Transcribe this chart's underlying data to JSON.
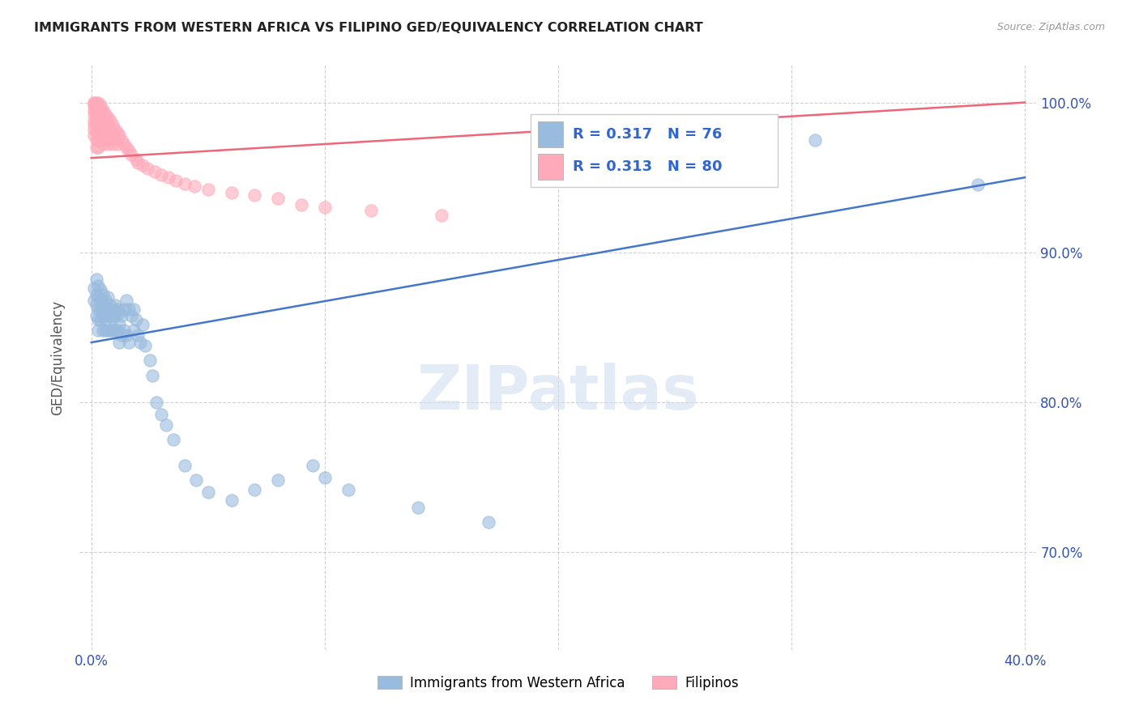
{
  "title": "IMMIGRANTS FROM WESTERN AFRICA VS FILIPINO GED/EQUIVALENCY CORRELATION CHART",
  "source": "Source: ZipAtlas.com",
  "ylabel": "GED/Equivalency",
  "legend_blue_R": "0.317",
  "legend_blue_N": "76",
  "legend_pink_R": "0.313",
  "legend_pink_N": "80",
  "blue_color": "#99BBDD",
  "pink_color": "#FFAABB",
  "blue_line_color": "#4477CC",
  "pink_line_color": "#EE6677",
  "watermark": "ZIPatlas",
  "legend_label_blue": "Immigrants from Western Africa",
  "legend_label_pink": "Filipinos",
  "blue_scatter_x": [
    0.001,
    0.001,
    0.002,
    0.002,
    0.002,
    0.002,
    0.003,
    0.003,
    0.003,
    0.003,
    0.003,
    0.004,
    0.004,
    0.004,
    0.004,
    0.005,
    0.005,
    0.005,
    0.005,
    0.006,
    0.006,
    0.006,
    0.006,
    0.007,
    0.007,
    0.007,
    0.007,
    0.008,
    0.008,
    0.008,
    0.009,
    0.009,
    0.009,
    0.01,
    0.01,
    0.01,
    0.011,
    0.011,
    0.012,
    0.012,
    0.012,
    0.013,
    0.013,
    0.014,
    0.014,
    0.015,
    0.015,
    0.016,
    0.016,
    0.017,
    0.018,
    0.018,
    0.019,
    0.02,
    0.021,
    0.022,
    0.023,
    0.025,
    0.026,
    0.028,
    0.03,
    0.032,
    0.035,
    0.04,
    0.045,
    0.05,
    0.06,
    0.07,
    0.08,
    0.095,
    0.1,
    0.11,
    0.14,
    0.17,
    0.31,
    0.38
  ],
  "blue_scatter_y": [
    0.876,
    0.868,
    0.882,
    0.872,
    0.865,
    0.858,
    0.878,
    0.87,
    0.862,
    0.855,
    0.848,
    0.875,
    0.868,
    0.862,
    0.855,
    0.872,
    0.865,
    0.858,
    0.848,
    0.868,
    0.862,
    0.855,
    0.848,
    0.87,
    0.862,
    0.858,
    0.848,
    0.865,
    0.858,
    0.848,
    0.862,
    0.856,
    0.848,
    0.865,
    0.858,
    0.848,
    0.862,
    0.848,
    0.86,
    0.852,
    0.84,
    0.858,
    0.845,
    0.862,
    0.848,
    0.868,
    0.845,
    0.862,
    0.84,
    0.858,
    0.862,
    0.848,
    0.855,
    0.845,
    0.84,
    0.852,
    0.838,
    0.828,
    0.818,
    0.8,
    0.792,
    0.785,
    0.775,
    0.758,
    0.748,
    0.74,
    0.735,
    0.742,
    0.748,
    0.758,
    0.75,
    0.742,
    0.73,
    0.72,
    0.975,
    0.945
  ],
  "pink_scatter_x": [
    0.001,
    0.001,
    0.001,
    0.001,
    0.001,
    0.001,
    0.001,
    0.001,
    0.001,
    0.002,
    0.002,
    0.002,
    0.002,
    0.002,
    0.002,
    0.002,
    0.002,
    0.002,
    0.003,
    0.003,
    0.003,
    0.003,
    0.003,
    0.003,
    0.003,
    0.003,
    0.003,
    0.004,
    0.004,
    0.004,
    0.004,
    0.004,
    0.004,
    0.005,
    0.005,
    0.005,
    0.005,
    0.005,
    0.006,
    0.006,
    0.006,
    0.006,
    0.007,
    0.007,
    0.007,
    0.007,
    0.008,
    0.008,
    0.008,
    0.009,
    0.009,
    0.009,
    0.01,
    0.01,
    0.011,
    0.011,
    0.012,
    0.013,
    0.014,
    0.015,
    0.016,
    0.017,
    0.019,
    0.02,
    0.022,
    0.024,
    0.027,
    0.03,
    0.033,
    0.036,
    0.04,
    0.044,
    0.05,
    0.06,
    0.07,
    0.08,
    0.09,
    0.1,
    0.12,
    0.15
  ],
  "pink_scatter_y": [
    1.0,
    1.0,
    0.998,
    0.995,
    0.992,
    0.988,
    0.985,
    0.982,
    0.978,
    1.0,
    0.998,
    0.995,
    0.992,
    0.988,
    0.985,
    0.98,
    0.975,
    0.97,
    1.0,
    0.998,
    0.995,
    0.992,
    0.988,
    0.985,
    0.98,
    0.975,
    0.97,
    0.998,
    0.995,
    0.99,
    0.985,
    0.98,
    0.975,
    0.995,
    0.99,
    0.985,
    0.978,
    0.972,
    0.992,
    0.988,
    0.982,
    0.975,
    0.99,
    0.985,
    0.978,
    0.972,
    0.988,
    0.982,
    0.975,
    0.985,
    0.98,
    0.972,
    0.982,
    0.975,
    0.98,
    0.972,
    0.978,
    0.975,
    0.972,
    0.97,
    0.968,
    0.965,
    0.962,
    0.96,
    0.958,
    0.956,
    0.954,
    0.952,
    0.95,
    0.948,
    0.946,
    0.944,
    0.942,
    0.94,
    0.938,
    0.936,
    0.932,
    0.93,
    0.928,
    0.925
  ],
  "xlim": [
    -0.005,
    0.405
  ],
  "ylim": [
    0.635,
    1.025
  ],
  "x_ticks": [
    0.0,
    0.1,
    0.2,
    0.3,
    0.4
  ],
  "x_tick_labels": [
    "0.0%",
    "",
    "",
    "",
    "40.0%"
  ],
  "y_tick_pos": [
    0.7,
    0.8,
    0.9,
    1.0
  ],
  "y_tick_labels": [
    "70.0%",
    "80.0%",
    "90.0%",
    "100.0%"
  ]
}
